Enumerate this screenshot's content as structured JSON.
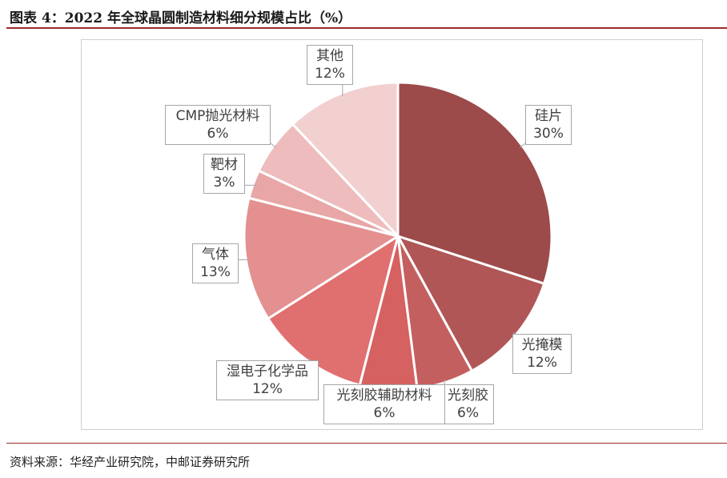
{
  "header": {
    "title": "图表 4：2022 年全球晶圆制造材料细分规模占比（%）"
  },
  "footer": {
    "source": "资料来源：华经产业研究院，中邮证券研究所"
  },
  "chart_data": {
    "type": "pie",
    "title": "图表 4：2022 年全球晶圆制造材料细分规模占比（%）",
    "unit": "%",
    "slices": [
      {
        "name": "硅片",
        "value": 30,
        "label": "30%",
        "color": "#9c4a4a"
      },
      {
        "name": "光掩模",
        "value": 12,
        "label": "12%",
        "color": "#b05656"
      },
      {
        "name": "光刻胶",
        "value": 6,
        "label": "6%",
        "color": "#c45f5f"
      },
      {
        "name": "光刻胶辅助材料",
        "value": 6,
        "label": "6%",
        "color": "#d56161"
      },
      {
        "name": "湿电子化学品",
        "value": 12,
        "label": "12%",
        "color": "#e06f6f"
      },
      {
        "name": "气体",
        "value": 13,
        "label": "13%",
        "color": "#e49090"
      },
      {
        "name": "靶材",
        "value": 3,
        "label": "3%",
        "color": "#e8a6a6"
      },
      {
        "name": "CMP抛光材料",
        "value": 6,
        "label": "6%",
        "color": "#eebcbc"
      },
      {
        "name": "其他",
        "value": 12,
        "label": "12%",
        "color": "#f2d0d0"
      }
    ],
    "start_angle": "12 o'clock",
    "direction": "clockwise",
    "legend": "none"
  }
}
